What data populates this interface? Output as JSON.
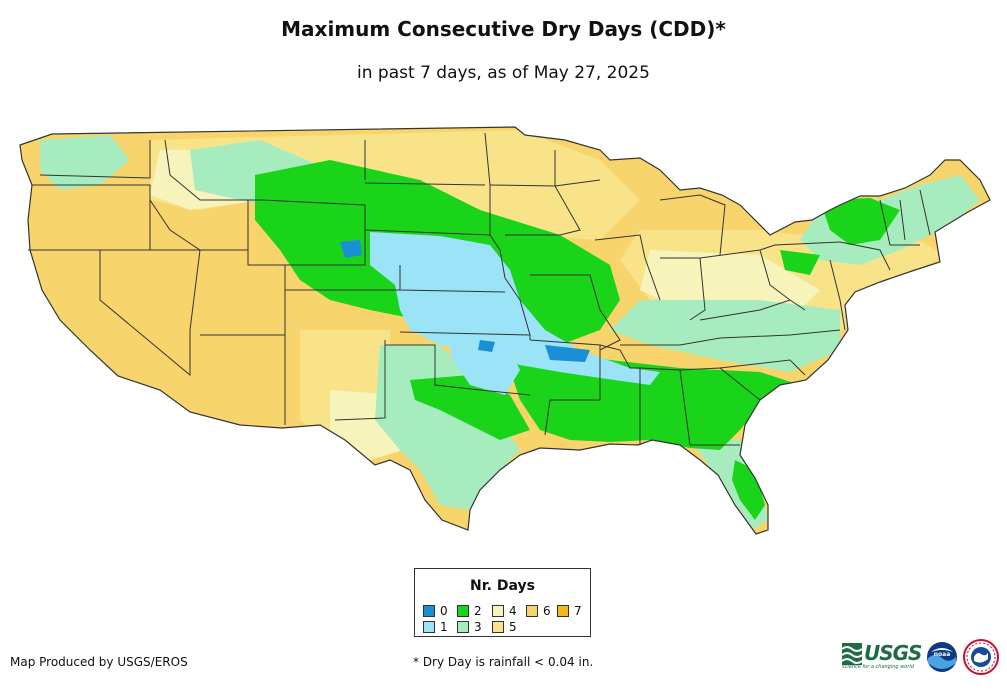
{
  "title": "Maximum Consecutive Dry Days (CDD)*",
  "subtitle": "in past 7 days, as of May 27, 2025",
  "legend": {
    "title": "Nr. Days",
    "items": [
      {
        "label": "0",
        "color": "#1a8fd6"
      },
      {
        "label": "1",
        "color": "#9be3f6"
      },
      {
        "label": "2",
        "color": "#19d419"
      },
      {
        "label": "3",
        "color": "#a7ecbe"
      },
      {
        "label": "4",
        "color": "#f6f4bb"
      },
      {
        "label": "5",
        "color": "#f8e389"
      },
      {
        "label": "6",
        "color": "#f7d56c"
      },
      {
        "label": "7",
        "color": "#f3b81b"
      }
    ]
  },
  "credit": "Map Produced by USGS/EROS",
  "footnote": "* Dry Day is rainfall < 0.04 in.",
  "logos": {
    "usgs": "USGS",
    "usgs_tagline": "science for a changing world",
    "noaa": "noaa-logo",
    "nws": "nws-logo"
  },
  "colors": {
    "state_border": "#333333"
  }
}
